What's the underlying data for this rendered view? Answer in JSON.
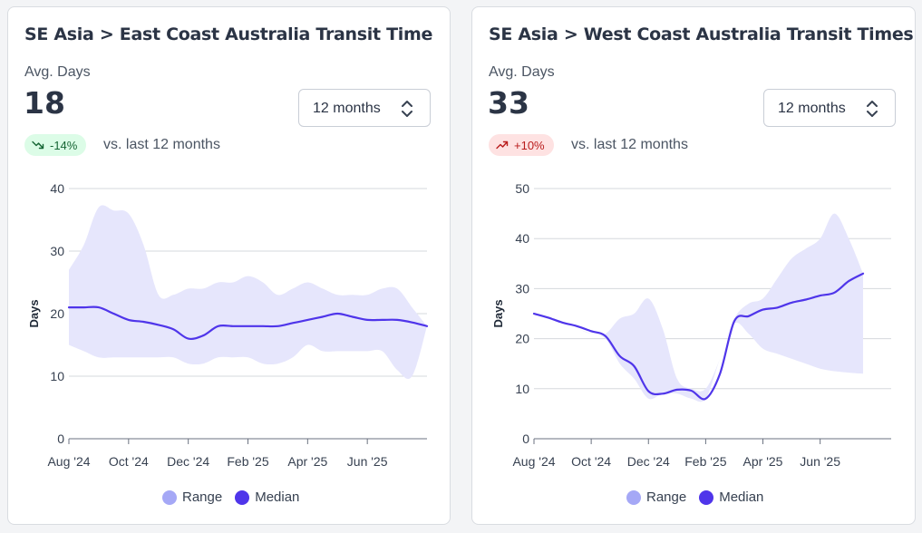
{
  "colors": {
    "range_fill": "#e6e6fc",
    "range_legend": "#a5a8f6",
    "median_line": "#4f35ea",
    "grid": "#d5d8dd",
    "badge_down_bg": "#dcfce7",
    "badge_up_bg": "#fee2e2"
  },
  "cards": [
    {
      "title": "SE Asia > East Coast Australia Transit Time",
      "metric_label": "Avg. Days",
      "metric_value": "18",
      "selector_value": "12 months",
      "badge_text": "-14%",
      "badge_direction": "down",
      "compare_text": "vs. last 12 months",
      "legend": [
        "Range",
        "Median"
      ]
    },
    {
      "title": "SE Asia > West Coast Australia Transit Times",
      "metric_label": "Avg. Days",
      "metric_value": "33",
      "selector_value": "12 months",
      "badge_text": "+10%",
      "badge_direction": "up",
      "compare_text": "vs. last 12 months",
      "legend": [
        "Range",
        "Median"
      ]
    }
  ],
  "chart_data": [
    {
      "type": "area",
      "ylabel": "Days",
      "ylim": [
        0,
        40
      ],
      "yticks": [
        0,
        10,
        20,
        30,
        40
      ],
      "xlim": [
        "2024-08-01",
        "2025-07-31"
      ],
      "xticks": [
        "Aug '24",
        "Oct '24",
        "Dec '24",
        "Feb '25",
        "Apr '25",
        "Jun '25"
      ],
      "grid": true,
      "legend_position": "bottom-center",
      "x": [
        "Aug 1",
        "Aug 15",
        "Sep 1",
        "Sep 15",
        "Oct 1",
        "Oct 15",
        "Nov 1",
        "Nov 15",
        "Dec 1",
        "Dec 15",
        "Jan 1",
        "Jan 15",
        "Feb 1",
        "Feb 15",
        "Mar 1",
        "Mar 15",
        "Apr 1",
        "Apr 15",
        "May 1",
        "May 15",
        "Jun 1",
        "Jun 15",
        "Jul 1",
        "Jul 15",
        "Jul 31"
      ],
      "series": [
        {
          "name": "Range",
          "type": "band",
          "upper": [
            27,
            31,
            37,
            36.5,
            36,
            31,
            23,
            23,
            24,
            24,
            25,
            25,
            26,
            25,
            23,
            24,
            25,
            24,
            23,
            23,
            23,
            24,
            24,
            21,
            18
          ],
          "lower": [
            15,
            14,
            13,
            13,
            13,
            13,
            13,
            13,
            12,
            12,
            13,
            13,
            13,
            12,
            12,
            13,
            15,
            14,
            14,
            14,
            14,
            14,
            11,
            10,
            18
          ]
        },
        {
          "name": "Median",
          "type": "line",
          "values": [
            21,
            21,
            21,
            20,
            19,
            18.7,
            18.2,
            17.5,
            16,
            16.5,
            18,
            18,
            18,
            18,
            18,
            18.5,
            19,
            19.5,
            20,
            19.5,
            19,
            19,
            19,
            18.6,
            18
          ]
        }
      ]
    },
    {
      "type": "area",
      "ylabel": "Days",
      "ylim": [
        0,
        50
      ],
      "yticks": [
        0,
        10,
        20,
        30,
        40,
        50
      ],
      "xlim": [
        "2024-08-01",
        "2025-07-31"
      ],
      "xticks": [
        "Aug '24",
        "Oct '24",
        "Dec '24",
        "Feb '25",
        "Apr '25",
        "Jun '25"
      ],
      "grid": true,
      "legend_position": "bottom-center",
      "x": [
        "Aug 1",
        "Aug 15",
        "Sep 1",
        "Sep 15",
        "Oct 1",
        "Oct 15",
        "Nov 1",
        "Nov 15",
        "Dec 1",
        "Dec 15",
        "Jan 1",
        "Jan 15",
        "Feb 1",
        "Feb 15",
        "Mar 1",
        "Mar 15",
        "Apr 1",
        "Apr 15",
        "May 1",
        "May 15",
        "Jun 1",
        "Jun 15",
        "Jul 1",
        "Jul 15"
      ],
      "series": [
        {
          "name": "Range",
          "type": "band",
          "upper": [
            25,
            24,
            23,
            22,
            21,
            21,
            24,
            25,
            28,
            22,
            12,
            10,
            10,
            16,
            24,
            27,
            28,
            32,
            36,
            38,
            40,
            45,
            40,
            33
          ],
          "lower": [
            25,
            24,
            23,
            22,
            21,
            20,
            15,
            12,
            8,
            9,
            9,
            8,
            8,
            16,
            23,
            21,
            18,
            17,
            16,
            15,
            14,
            13.5,
            13.2,
            13
          ]
        },
        {
          "name": "Median",
          "type": "line",
          "values": [
            25,
            24.2,
            23.2,
            22.5,
            21.5,
            20.5,
            16.5,
            14.5,
            9.5,
            9,
            9.8,
            9.6,
            8,
            13,
            23.5,
            24.5,
            25.8,
            26.2,
            27.2,
            27.8,
            28.6,
            29.2,
            31.5,
            33
          ]
        }
      ]
    }
  ]
}
